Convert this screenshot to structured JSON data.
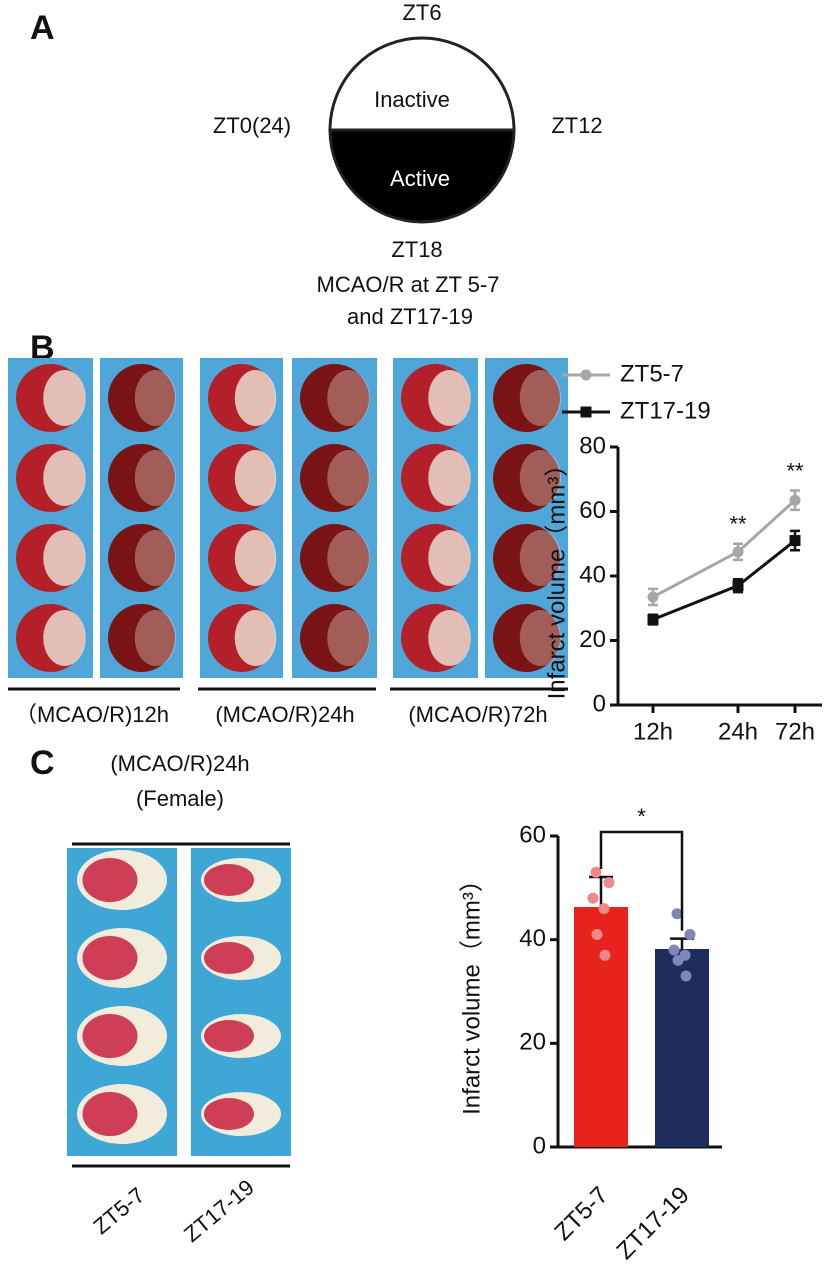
{
  "panel_a": {
    "label": "A",
    "top": "ZT6",
    "left": "ZT0(24)",
    "right": "ZT12",
    "bottom": "ZT18",
    "inactive": "Inactive",
    "active": "Active",
    "note": [
      "MCAO/R at  ZT 5-7",
      "and  ZT17-19"
    ]
  },
  "panel_b": {
    "label": "B",
    "photo_labels": [
      "（MCAO/R)12h",
      "(MCAO/R)24h",
      "(MCAO/R)72h"
    ]
  },
  "panel_c": {
    "label": "C",
    "photo_title": [
      "(MCAO/R)24h",
      "(Female)"
    ],
    "photo_labels": [
      "ZT5-7",
      "ZT17-19"
    ]
  },
  "chart_data": [
    {
      "type": "line",
      "ylabel": "Infarct volume（mm³）",
      "categories": [
        "12h",
        "24h",
        "72h"
      ],
      "series": [
        {
          "name": "ZT5-7",
          "color": "#a6a6a6",
          "values": [
            33.5,
            47.5,
            63.5
          ],
          "errors": [
            2.5,
            2.5,
            3
          ]
        },
        {
          "name": "ZT17-19",
          "color": "#111111",
          "values": [
            26.5,
            37,
            51
          ],
          "errors": [
            1.5,
            2,
            3
          ]
        }
      ],
      "annotations": [
        null,
        "**",
        "**"
      ],
      "ylim": [
        0,
        80
      ],
      "yticks": [
        0,
        20,
        40,
        60,
        80
      ]
    },
    {
      "type": "bar",
      "ylabel": "Infarct volume（mm³）",
      "categories": [
        "ZT5-7",
        "ZT17-19"
      ],
      "values": [
        46.3,
        38.2
      ],
      "errors": [
        5.8,
        2
      ],
      "colors": [
        "#e8221c",
        "#1f2d5c"
      ],
      "points": [
        [
          53,
          51,
          48,
          46,
          41,
          37
        ],
        [
          45,
          41,
          38,
          37,
          36,
          33
        ]
      ],
      "point_colors": [
        "#f08a8a",
        "#7f86b8"
      ],
      "significance": "*",
      "ylim": [
        0,
        60
      ],
      "yticks": [
        0,
        20,
        40,
        60
      ]
    }
  ]
}
